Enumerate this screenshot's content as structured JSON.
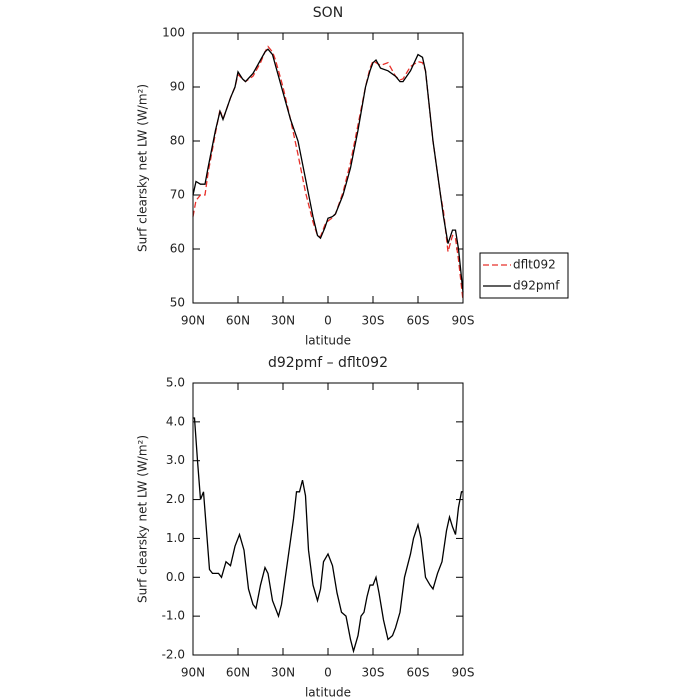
{
  "chart_data": [
    {
      "type": "line",
      "title": "SON",
      "xlabel": "latitude",
      "ylabel": "Surf clearsky net LW (W/m²)",
      "x": [
        90,
        88,
        85,
        82,
        80,
        75,
        72,
        70,
        65,
        62,
        60,
        57,
        55,
        50,
        45,
        42,
        40,
        37,
        35,
        30,
        25,
        20,
        15,
        10,
        7,
        5,
        2,
        0,
        -3,
        -5,
        -10,
        -15,
        -20,
        -25,
        -28,
        -30,
        -32,
        -35,
        -40,
        -45,
        -48,
        -50,
        -55,
        -60,
        -63,
        -65,
        -70,
        -75,
        -77,
        -80,
        -83,
        -85,
        -87,
        -90
      ],
      "series": [
        {
          "name": "dflt092",
          "color": "#e8302a",
          "dash": true,
          "values": [
            66,
            69,
            70,
            70,
            74,
            81.5,
            85.8,
            84,
            88,
            90,
            92.3,
            91.5,
            91,
            92,
            94.5,
            96.5,
            97.5,
            96.5,
            95,
            90,
            84,
            77.5,
            70.5,
            65,
            62.5,
            62.3,
            64.5,
            65.2,
            65.8,
            66.5,
            70.5,
            76,
            83,
            90,
            93.5,
            94.8,
            94.5,
            94,
            94.5,
            92,
            91.3,
            91.5,
            93.8,
            94.7,
            94.5,
            93,
            80,
            70,
            67,
            59.5,
            62.5,
            62,
            58,
            50.5
          ]
        },
        {
          "name": "d92pmf",
          "color": "#000000",
          "dash": false,
          "values": [
            70,
            72.5,
            72,
            72,
            75,
            82,
            85.5,
            84,
            88,
            90,
            92.8,
            91.5,
            91,
            92.5,
            95,
            96.5,
            97,
            96,
            94,
            89,
            84,
            80,
            73,
            66,
            62.5,
            62,
            64,
            65.7,
            66,
            66.5,
            70,
            75,
            82,
            90,
            93,
            94.5,
            95,
            93.5,
            93,
            92,
            91,
            91,
            93,
            96,
            95.5,
            93,
            80,
            70,
            66,
            61,
            63.5,
            63.5,
            60,
            52
          ]
        }
      ],
      "xlim": [
        90,
        -90
      ],
      "xticks": [
        {
          "value": 90,
          "label": "90N"
        },
        {
          "value": 60,
          "label": "60N"
        },
        {
          "value": 30,
          "label": "30N"
        },
        0,
        {
          "value": -30,
          "label": "30S"
        },
        {
          "value": -60,
          "label": "60S"
        },
        {
          "value": -90,
          "label": "90S"
        }
      ],
      "ylim": [
        50,
        100
      ],
      "yticks": [
        50,
        60,
        70,
        80,
        90,
        100
      ],
      "legend": "right"
    },
    {
      "type": "line",
      "title": "d92pmf – dflt092",
      "xlabel": "latitude",
      "ylabel": "Surf clearsky net LW (W/m²)",
      "x": [
        90,
        89,
        87,
        85,
        83,
        81,
        79,
        77,
        73,
        71,
        68,
        65,
        62,
        59,
        56,
        53,
        50,
        48,
        45,
        42,
        40,
        37,
        33,
        31,
        27,
        23,
        21,
        19,
        17,
        15,
        13,
        10,
        7,
        5,
        3,
        0,
        -3,
        -6,
        -9,
        -12,
        -15,
        -17,
        -20,
        -22,
        -24,
        -26,
        -28,
        -30,
        -32,
        -34,
        -37,
        -40,
        -43,
        -45,
        -48,
        -51,
        -55,
        -57,
        -60,
        -62,
        -65,
        -68,
        -70,
        -73,
        -76,
        -79,
        -81,
        -83,
        -85,
        -87,
        -89,
        -90
      ],
      "values": [
        4.1,
        4.1,
        3.0,
        2.0,
        2.2,
        1.2,
        0.2,
        0.1,
        0.1,
        0.0,
        0.4,
        0.3,
        0.8,
        1.1,
        0.7,
        -0.3,
        -0.7,
        -0.8,
        -0.2,
        0.25,
        0.1,
        -0.6,
        -1.0,
        -0.7,
        0.4,
        1.5,
        2.2,
        2.2,
        2.5,
        2.1,
        0.7,
        -0.2,
        -0.6,
        -0.3,
        0.4,
        0.6,
        0.3,
        -0.4,
        -0.9,
        -1.0,
        -1.6,
        -1.9,
        -1.5,
        -1.0,
        -0.9,
        -0.5,
        -0.2,
        -0.2,
        0.0,
        -0.4,
        -1.1,
        -1.6,
        -1.5,
        -1.3,
        -0.9,
        0.0,
        0.6,
        1.0,
        1.35,
        1.0,
        0.0,
        -0.2,
        -0.3,
        0.1,
        0.4,
        1.2,
        1.55,
        1.3,
        1.1,
        1.8,
        2.2,
        2.2
      ],
      "color": "#000000",
      "xlim": [
        90,
        -90
      ],
      "xticks": [
        {
          "value": 90,
          "label": "90N"
        },
        {
          "value": 60,
          "label": "60N"
        },
        {
          "value": 30,
          "label": "30N"
        },
        0,
        {
          "value": -30,
          "label": "30S"
        },
        {
          "value": -60,
          "label": "60S"
        },
        {
          "value": -90,
          "label": "90S"
        }
      ],
      "ylim": [
        -2,
        5
      ],
      "yticks": [
        {
          "value": -2,
          "label": "-2.0"
        },
        {
          "value": -1,
          "label": "-1.0"
        },
        {
          "value": 0,
          "label": "0.0"
        },
        {
          "value": 1,
          "label": "1.0"
        },
        {
          "value": 2,
          "label": "2.0"
        },
        {
          "value": 3,
          "label": "3.0"
        },
        {
          "value": 4,
          "label": "4.0"
        },
        {
          "value": 5,
          "label": "5.0"
        }
      ]
    }
  ]
}
